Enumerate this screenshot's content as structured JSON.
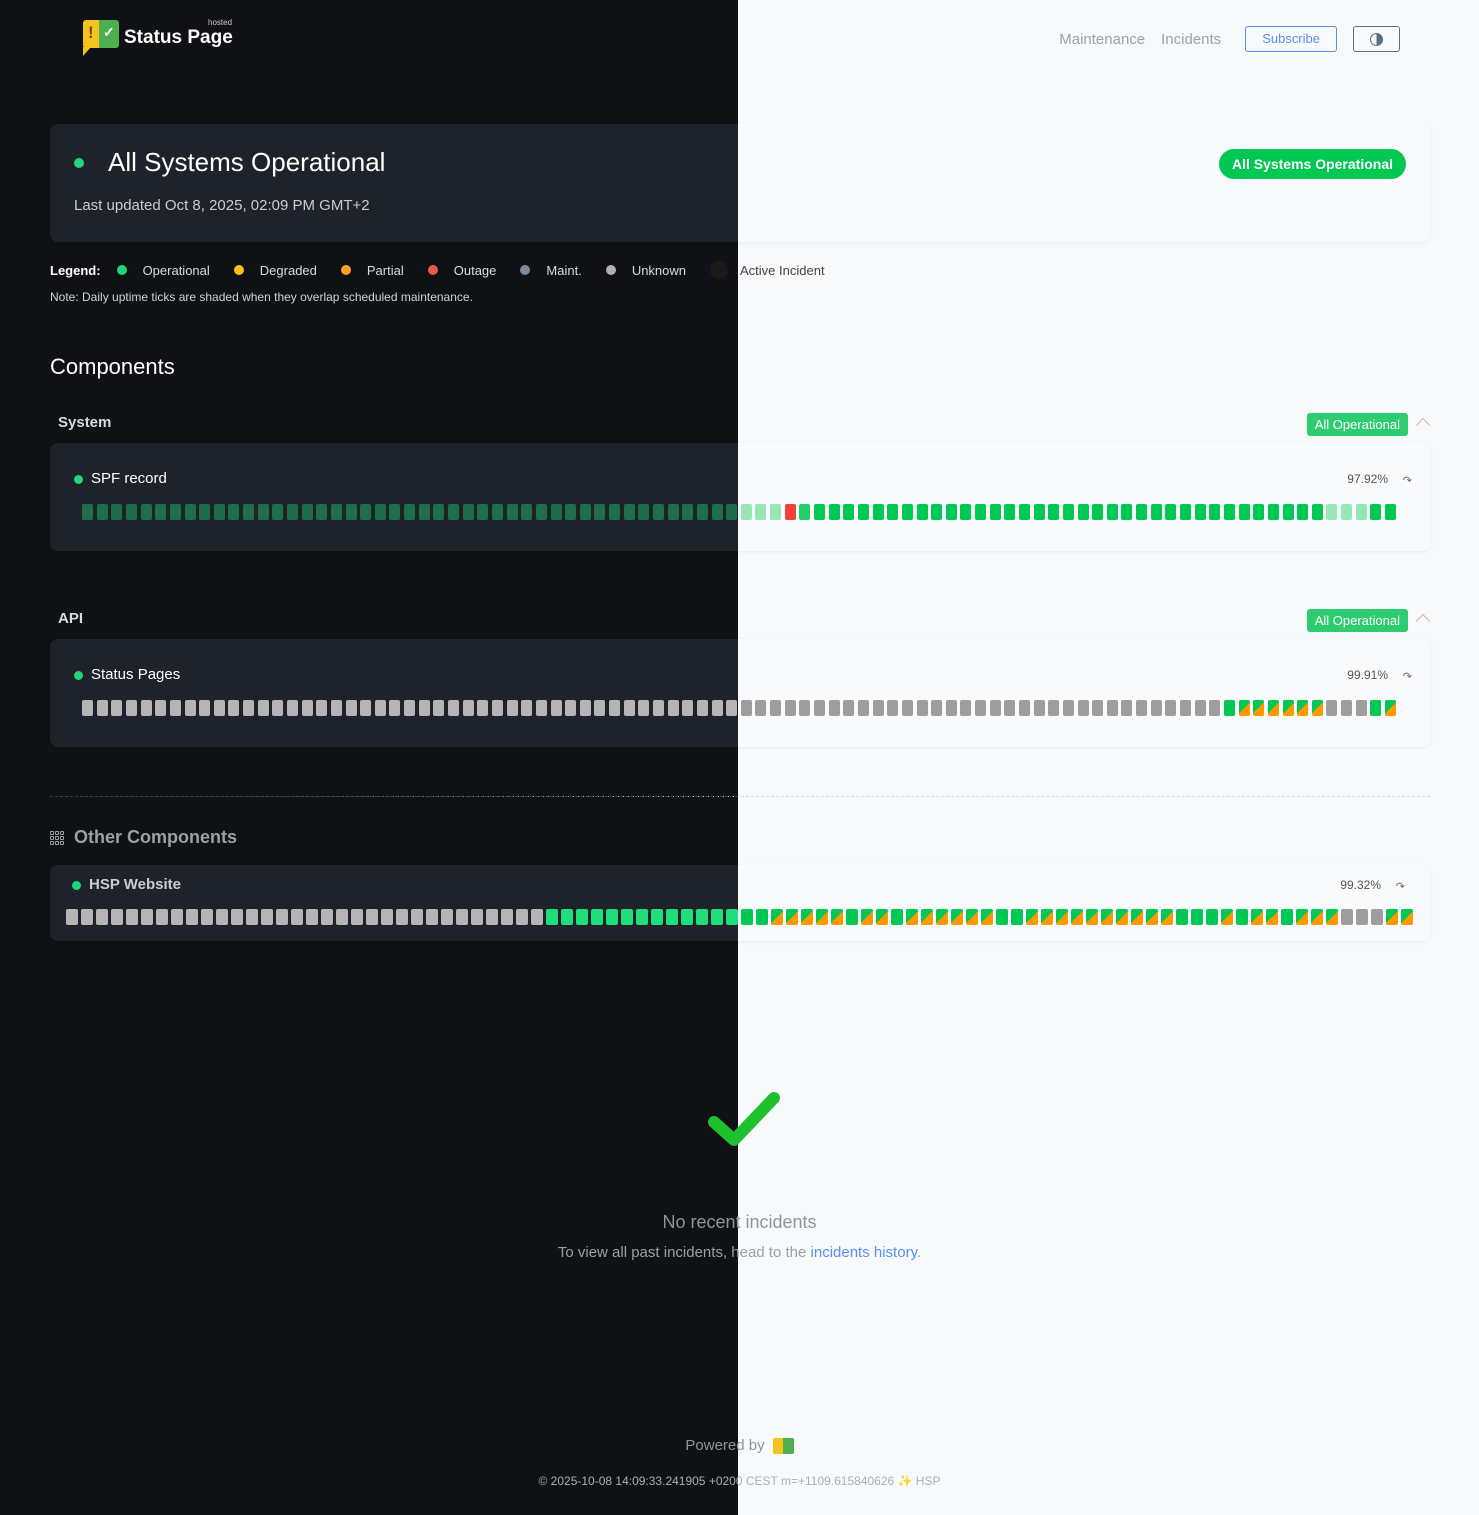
{
  "header": {
    "logo_text": "Status Page",
    "logo_hosted": "hosted",
    "nav": [
      "Maintenance",
      "Incidents"
    ],
    "subscribe_label": "Subscribe",
    "theme_toggle_icon": "half-circle-contrast-icon"
  },
  "status": {
    "title": "All Systems Operational",
    "last_updated": "Last updated Oct 8, 2025, 02:09 PM GMT+2",
    "pill": "All Systems Operational"
  },
  "legend": {
    "label": "Legend:",
    "items": [
      {
        "label": "Operational",
        "color": "#1fd67a"
      },
      {
        "label": "Degraded",
        "color": "#f6c31c"
      },
      {
        "label": "Partial",
        "color": "#ff9f2e"
      },
      {
        "label": "Outage",
        "color": "#f0564a"
      },
      {
        "label": "Maint.",
        "color": "#7b8b99"
      },
      {
        "label": "Unknown",
        "color": "#b0b0b0"
      },
      {
        "label": "Active Incident",
        "color": "#1c1a16"
      }
    ],
    "note": "Note: Daily uptime ticks are shaded when they overlap scheduled maintenance."
  },
  "components_title": "Components",
  "tick_colors": {
    "light": {
      "D": "#00c853",
      "L": "#98e6b4",
      "O": "#f44336",
      "M": "#22cc66",
      "G": "#00c853",
      "B": "#00c853",
      "U": "#9e9e9e",
      "S": "striped"
    },
    "dark": {
      "D": "#1f6e4a",
      "L": "#98e6b4",
      "O": "#f44336",
      "M": "#22cc66",
      "G": "#00c853",
      "B": "#1fdf7a",
      "U": "#b5b5b5",
      "S": "striped"
    },
    "stripe_colors": [
      "#00c853",
      "#ff9800"
    ]
  },
  "groups": [
    {
      "label": "System",
      "badge": "All Operational",
      "components": [
        {
          "name": "SPF record",
          "uptime": "97.92%",
          "ticks": "DDDDDDDDDDDDDDDDDDDDDDDDDDDDDDDDDDDDDDDDDDDDDLLLOMGGGGGGGGGGGGGGGGGGGGGGGGGGGGGGGGGGGLLLGG"
        }
      ]
    },
    {
      "label": "API",
      "badge": "All Operational",
      "components": [
        {
          "name": "Status Pages",
          "uptime": "99.91%",
          "ticks": "UUUUUUUUUUUUUUUUUUUUUUUUUUUUUUUUUUUUUUUUUUUUUUUUUUUUUUUUUUUUUUUUUUUUUUUUUUUUUUGSSSSSSUUUGS"
        }
      ]
    }
  ],
  "other": {
    "title": "Other Components",
    "components": [
      {
        "name": "HSP Website",
        "uptime": "99.32%",
        "ticks": "UUUUUUUUUUUUUUUUUUUUUUUUUUUUUUUUBBBBBBBBBBBBBGGSSSSSGSSGSSSSSSGGSSSSSSSSSSGGGSGSSGSSSUUUSS"
      }
    ]
  },
  "incidents": {
    "title": "No recent incidents",
    "sub_prefix": "To view all past incidents, head to the ",
    "link": "incidents history",
    "sub_suffix": "."
  },
  "footer": {
    "powered_by": "Powered by",
    "build": "© 2025-10-08 14:09:33.241905 +0200 CEST m=+1109.615840626 ✨ HSP"
  }
}
